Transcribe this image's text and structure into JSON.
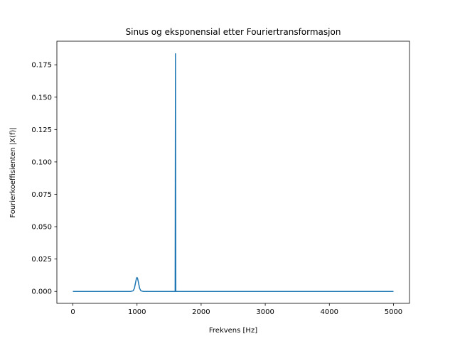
{
  "colors": {
    "series": "#1f77b4",
    "axes": "#000000",
    "background": "#ffffff"
  },
  "chart_data": {
    "type": "line",
    "title": "Sinus og eksponensial etter Fouriertransformasjon",
    "xlabel": "Frekvens [Hz]",
    "ylabel": "Fourierkoeffisienten |X(f)|",
    "xlim": [
      -250,
      5250
    ],
    "ylim": [
      -0.0092,
      0.1932
    ],
    "grid": false,
    "xticks": [
      0,
      1000,
      2000,
      3000,
      4000,
      5000
    ],
    "xtick_labels": [
      "0",
      "1000",
      "2000",
      "3000",
      "4000",
      "5000"
    ],
    "yticks": [
      0.0,
      0.025,
      0.05,
      0.075,
      0.1,
      0.125,
      0.15,
      0.175
    ],
    "ytick_labels": [
      "0.000",
      "0.025",
      "0.050",
      "0.075",
      "0.100",
      "0.125",
      "0.150",
      "0.175"
    ],
    "series": [
      {
        "x": [
          0,
          500,
          900,
          940,
          960,
          980,
          990,
          1000,
          1010,
          1020,
          1040,
          1060,
          1100,
          1500,
          1590,
          1595,
          1600,
          1605,
          1610,
          2000,
          3000,
          4000,
          5000
        ],
        "y": [
          0.0,
          0.0,
          0.0,
          0.0005,
          0.0025,
          0.0075,
          0.0098,
          0.0108,
          0.0098,
          0.0075,
          0.0025,
          0.0005,
          0.0,
          0.0,
          0.0,
          0.0,
          0.1835,
          0.0,
          0.0,
          0.0,
          0.0,
          0.0,
          0.0
        ]
      }
    ]
  }
}
